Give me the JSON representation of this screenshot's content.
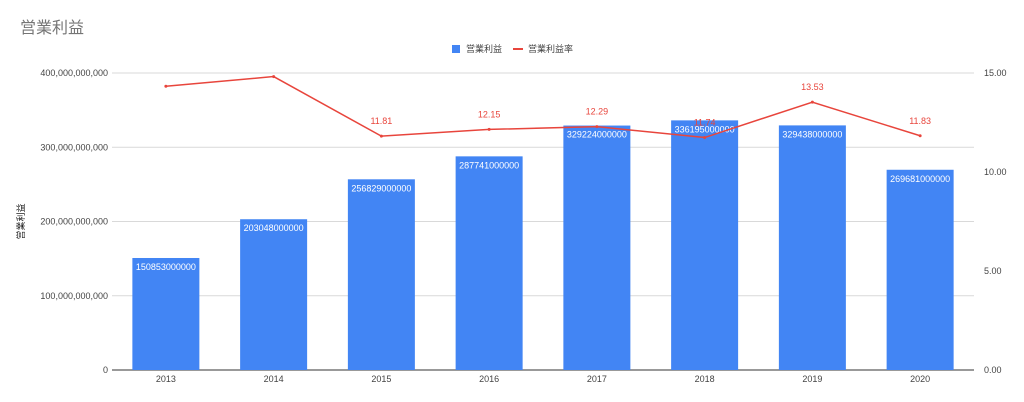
{
  "chart_data": {
    "type": "bar",
    "title": "営業利益",
    "categories": [
      "2013",
      "2014",
      "2015",
      "2016",
      "2017",
      "2018",
      "2019",
      "2020"
    ],
    "series": [
      {
        "name": "営業利益",
        "type": "bar",
        "axis": "left",
        "color": "#4285f4",
        "values": [
          150853000000,
          203048000000,
          256829000000,
          287741000000,
          329224000000,
          336195000000,
          329438000000,
          269681000000
        ],
        "labels": [
          "150853000000",
          "203048000000",
          "256829000000",
          "287741000000",
          "329224000000",
          "336195000000",
          "329438000000",
          "269681000000"
        ]
      },
      {
        "name": "営業利益率",
        "type": "line",
        "axis": "right",
        "color": "#e8453c",
        "values": [
          14.33,
          14.82,
          11.81,
          12.15,
          12.29,
          11.74,
          13.53,
          11.83
        ],
        "labels": [
          "",
          "",
          "11.81",
          "12.15",
          "12.29",
          "11.74",
          "13.53",
          "11.83"
        ]
      }
    ],
    "ylabel": "営業利益",
    "y2label": "",
    "ylim": [
      0,
      400000000000
    ],
    "y2lim": [
      0,
      15
    ],
    "yticks": [
      "0",
      "100,000,000,000",
      "200,000,000,000",
      "300,000,000,000",
      "400,000,000,000"
    ],
    "y2ticks": [
      "0.00",
      "5.00",
      "10.00",
      "15.00"
    ],
    "grid": true,
    "legend": "top-center"
  }
}
